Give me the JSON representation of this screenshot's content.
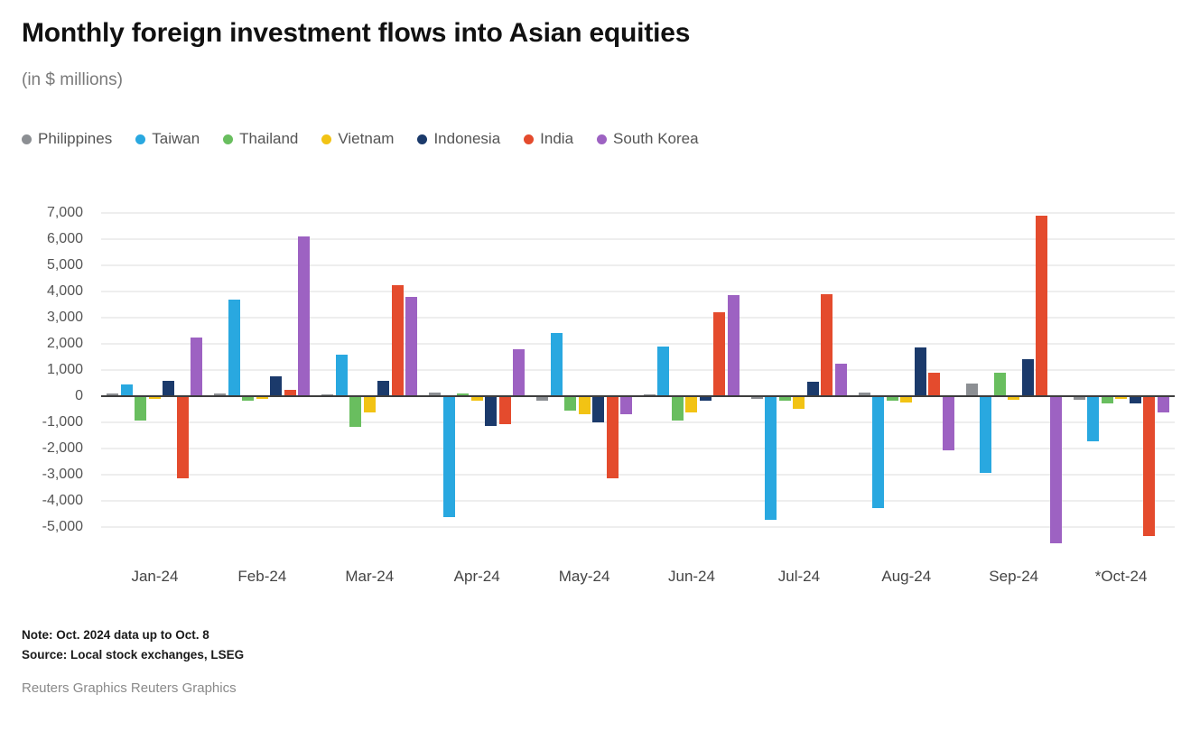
{
  "title": "Monthly foreign investment flows into Asian equities",
  "subtitle": "(in $ millions)",
  "notes": {
    "note": "Note: Oct. 2024 data up to Oct. 8",
    "source": "Source: Local stock exchanges, LSEG",
    "credit": "Reuters Graphics Reuters Graphics"
  },
  "chart_data": {
    "type": "bar",
    "title": "Monthly foreign investment flows into Asian equities",
    "subtitle": "(in $ millions)",
    "categories": [
      "Jan-24",
      "Feb-24",
      "Mar-24",
      "Apr-24",
      "May-24",
      "Jun-24",
      "Jul-24",
      "Aug-24",
      "Sep-24",
      "*Oct-24"
    ],
    "series": [
      {
        "name": "Philippines",
        "color": "#8c8f93",
        "values": [
          100,
          100,
          50,
          150,
          -150,
          50,
          -50,
          150,
          500,
          -100
        ]
      },
      {
        "name": "Taiwan",
        "color": "#29a8e0",
        "values": [
          450,
          3700,
          1600,
          -4600,
          2400,
          1900,
          -4700,
          -4250,
          -2900,
          -1700
        ]
      },
      {
        "name": "Thailand",
        "color": "#69be5f",
        "values": [
          -900,
          -150,
          -1150,
          100,
          -500,
          -900,
          -150,
          -150,
          900,
          -250
        ]
      },
      {
        "name": "Vietnam",
        "color": "#f2c314",
        "values": [
          -50,
          -50,
          -600,
          -150,
          -650,
          -600,
          -450,
          -200,
          -100,
          -80
        ]
      },
      {
        "name": "Indonesia",
        "color": "#1b3a6b",
        "values": [
          600,
          750,
          600,
          -1100,
          -950,
          -150,
          550,
          1850,
          1400,
          -250
        ]
      },
      {
        "name": "India",
        "color": "#e44b2d",
        "values": [
          -3100,
          250,
          4250,
          -1050,
          -3100,
          3200,
          3900,
          900,
          6900,
          -5300
        ]
      },
      {
        "name": "South Korea",
        "color": "#9d62c2",
        "values": [
          2250,
          6100,
          3800,
          1800,
          -650,
          3850,
          1250,
          -2050,
          -5600,
          -600
        ]
      }
    ],
    "xlabel": "",
    "ylabel": "",
    "ylim": [
      -6000,
      7000
    ],
    "ytick_step": 1000,
    "gridline_range": [
      -5000,
      7000
    ],
    "grid": true,
    "legend_position": "top"
  }
}
